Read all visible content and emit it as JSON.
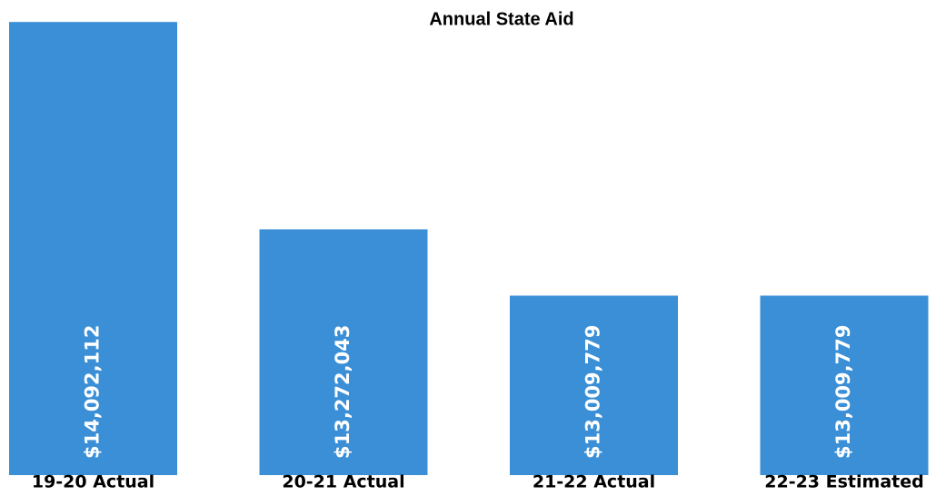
{
  "chart_data": {
    "type": "bar",
    "title": "Annual State Aid",
    "categories": [
      "19-20 Actual",
      "20-21 Actual",
      "21-22 Actual",
      "22-23 Estimated"
    ],
    "values": [
      14092112,
      13272043,
      13009779,
      13009779
    ],
    "value_labels": [
      "$14,092,112",
      "$13,272,043",
      "$13,009,779",
      "$13,009,779"
    ],
    "color": "#3a8fd6",
    "ylim": [
      12300000,
      14100000
    ]
  }
}
